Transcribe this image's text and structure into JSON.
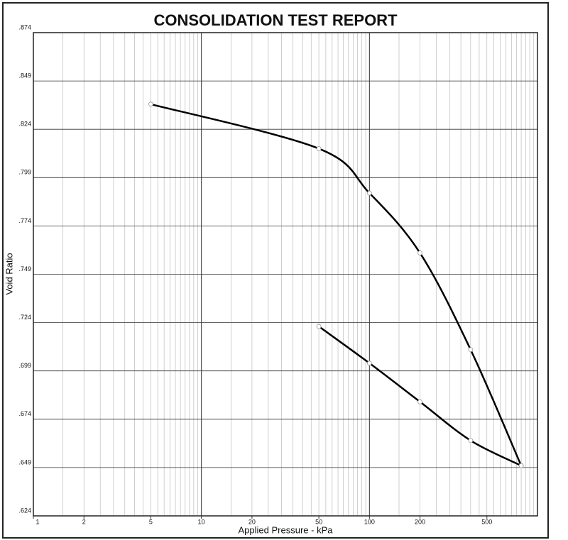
{
  "chart_data": {
    "type": "line",
    "title": "CONSOLIDATION TEST REPORT",
    "x_label": "Applied Pressure - kPa",
    "y_label": "Void Ratio",
    "x_scale": "log",
    "grid": true,
    "xlim": [
      1,
      1000
    ],
    "xticks": [
      1,
      2,
      5,
      10,
      20,
      50,
      100,
      200,
      500
    ],
    "ylim": [
      0.624,
      0.874
    ],
    "yticks": [
      {
        "value": 0.624,
        "label": ".624"
      },
      {
        "value": 0.649,
        "label": ".649"
      },
      {
        "value": 0.674,
        "label": ".674"
      },
      {
        "value": 0.699,
        "label": ".699"
      },
      {
        "value": 0.724,
        "label": ".724"
      },
      {
        "value": 0.749,
        "label": ".749"
      },
      {
        "value": 0.774,
        "label": ".774"
      },
      {
        "value": 0.799,
        "label": ".799"
      },
      {
        "value": 0.824,
        "label": ".824"
      },
      {
        "value": 0.849,
        "label": ".849"
      },
      {
        "value": 0.874,
        "label": ".874"
      }
    ],
    "series": [
      {
        "color": "#000000",
        "x": [
          5,
          50,
          100,
          200,
          400,
          800
        ],
        "values": [
          0.837,
          0.814,
          0.791,
          0.76,
          0.71,
          0.65
        ]
      },
      {
        "color": "#000000",
        "x": [
          800,
          400,
          200,
          100,
          50
        ],
        "values": [
          0.65,
          0.663,
          0.683,
          0.703,
          0.722
        ]
      }
    ]
  }
}
